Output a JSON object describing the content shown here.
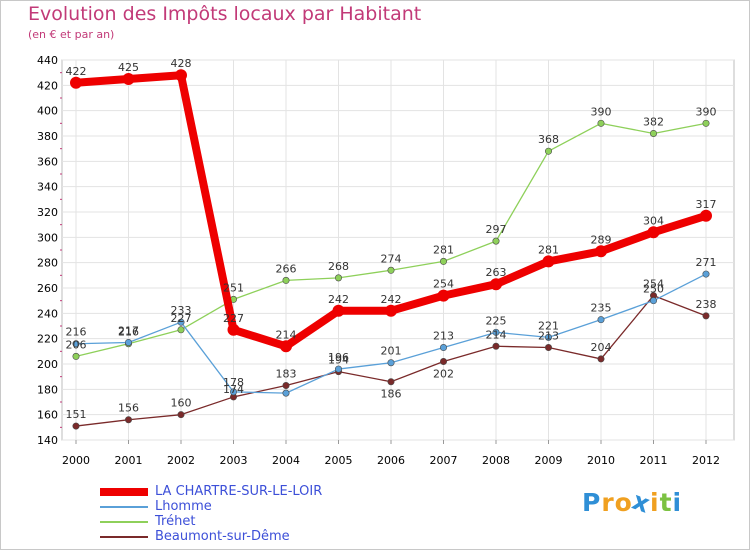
{
  "title": "Evolution des Impôts locaux par Habitant",
  "subtitle": "(en € et par an)",
  "logo": {
    "letters": [
      "P",
      "r",
      "o",
      "x",
      "i",
      "t",
      "i"
    ],
    "colors": [
      "#2f8fd6",
      "#f0a020",
      "#f0a020",
      "#2f8fd6",
      "#f0a020",
      "#7cc242",
      "#2f8fd6"
    ]
  },
  "chart_data": {
    "type": "line",
    "title": "Evolution des Impôts locaux par Habitant",
    "subtitle": "(en € et par an)",
    "xlabel": "",
    "ylabel": "",
    "x": [
      "2000",
      "2001",
      "2002",
      "2003",
      "2004",
      "2005",
      "2006",
      "2007",
      "2008",
      "2009",
      "2010",
      "2011",
      "2012"
    ],
    "ylim": [
      140,
      440
    ],
    "yticks": [
      140,
      160,
      180,
      200,
      220,
      240,
      260,
      280,
      300,
      320,
      340,
      360,
      380,
      400,
      420,
      440
    ],
    "grid": true,
    "legend_position": "bottom-left",
    "series": [
      {
        "name": "LA CHARTRE-SUR-LE-LOIR",
        "color": "#ee0000",
        "values": [
          422,
          425,
          428,
          227,
          214,
          242,
          242,
          254,
          263,
          281,
          289,
          304,
          317
        ],
        "labels": [
          "422",
          "425",
          "428",
          "227",
          "214",
          "242",
          "242",
          "254",
          "263",
          "281",
          "289",
          "304",
          "317"
        ],
        "label_dy": [
          -8,
          -8,
          -8,
          -8,
          -8,
          -8,
          -8,
          -8,
          -8,
          -8,
          -8,
          -8,
          -8
        ]
      },
      {
        "name": "Lhomme",
        "color": "#5aa0d8",
        "values": [
          216,
          217,
          233,
          178,
          177,
          196,
          201,
          213,
          225,
          221,
          235,
          250,
          271
        ],
        "labels": [
          "216",
          "217",
          "233",
          "178",
          "",
          "196",
          "201",
          "213",
          "225",
          "221",
          "235",
          "250",
          "271"
        ],
        "label_dy": [
          -8,
          -8,
          -8,
          -6,
          0,
          -8,
          -8,
          -8,
          -8,
          -8,
          -8,
          -8,
          -8
        ]
      },
      {
        "name": "Tréhet",
        "color": "#8ed05a",
        "values": [
          206,
          216,
          227,
          251,
          266,
          268,
          274,
          281,
          297,
          368,
          390,
          382,
          390
        ],
        "labels": [
          "206",
          "216",
          "227",
          "251",
          "266",
          "268",
          "274",
          "281",
          "297",
          "368",
          "390",
          "382",
          "390"
        ],
        "label_dy": [
          -8,
          -8,
          -8,
          -8,
          -8,
          -8,
          -8,
          -8,
          -8,
          -8,
          -8,
          -8,
          -8
        ]
      },
      {
        "name": "Beaumont-sur-Dême",
        "color": "#7a2a2a",
        "values": [
          151,
          156,
          160,
          174,
          183,
          194,
          186,
          202,
          214,
          213,
          204,
          254,
          238
        ],
        "labels": [
          "151",
          "156",
          "160",
          "174",
          "183",
          "194",
          "186",
          "202",
          "214",
          "213",
          "204",
          "254",
          "238"
        ],
        "label_dy": [
          -8,
          -8,
          -8,
          -4,
          -8,
          -8,
          16,
          16,
          -8,
          -8,
          -8,
          -8,
          -8
        ]
      }
    ]
  }
}
